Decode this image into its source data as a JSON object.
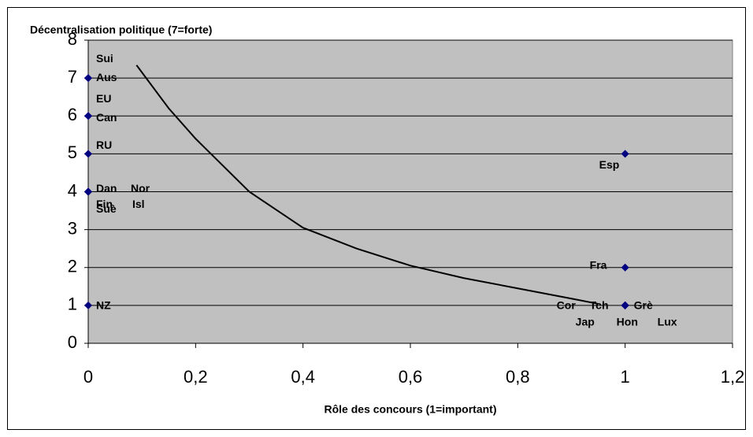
{
  "chart_data": {
    "type": "scatter",
    "y_label": "Décentralisation politique (7=forte)",
    "x_label": "Rôle des concours (1=important)",
    "xlim": [
      0,
      1.2
    ],
    "xticks": [
      0,
      {
        "value": 0.2,
        "label": "0,2"
      },
      {
        "value": 0.4,
        "label": "0,4"
      },
      {
        "value": 0.6,
        "label": "0,6"
      },
      {
        "value": 0.8,
        "label": "0,8"
      },
      1,
      {
        "value": 1.2,
        "label": "1,2"
      }
    ],
    "ylim": [
      0,
      8
    ],
    "yticks": [
      0,
      1,
      2,
      3,
      4,
      5,
      6,
      7,
      8
    ],
    "grid": true,
    "color": "#000080",
    "points": {
      "labels": [
        "Sui",
        "Aus",
        "EU",
        "Can",
        "RU",
        "Suè",
        "Dan",
        "Nor",
        "Fin",
        "Isl",
        "NZ",
        "Esp",
        "Fra",
        "Cor",
        "Tch",
        "Grè",
        "Jap",
        "Hon",
        "Lux"
      ],
      "x": [
        0,
        0,
        0,
        0,
        0,
        0,
        0,
        0,
        0,
        0,
        0,
        1,
        1,
        1,
        1,
        1,
        1,
        1,
        1
      ],
      "y": [
        7,
        7,
        6,
        6,
        5,
        4,
        4,
        4,
        4,
        4,
        1,
        5,
        2,
        1,
        1,
        1,
        1,
        1,
        1
      ]
    },
    "trendline": {
      "color": "#000000",
      "x": [
        0.09,
        0.15,
        0.2,
        0.3,
        0.4,
        0.5,
        0.6,
        0.7,
        0.8,
        0.9,
        0.95
      ],
      "y": [
        7.34,
        6.2,
        5.4,
        4.0,
        3.05,
        2.5,
        2.05,
        1.72,
        1.45,
        1.18,
        1.04
      ]
    }
  }
}
